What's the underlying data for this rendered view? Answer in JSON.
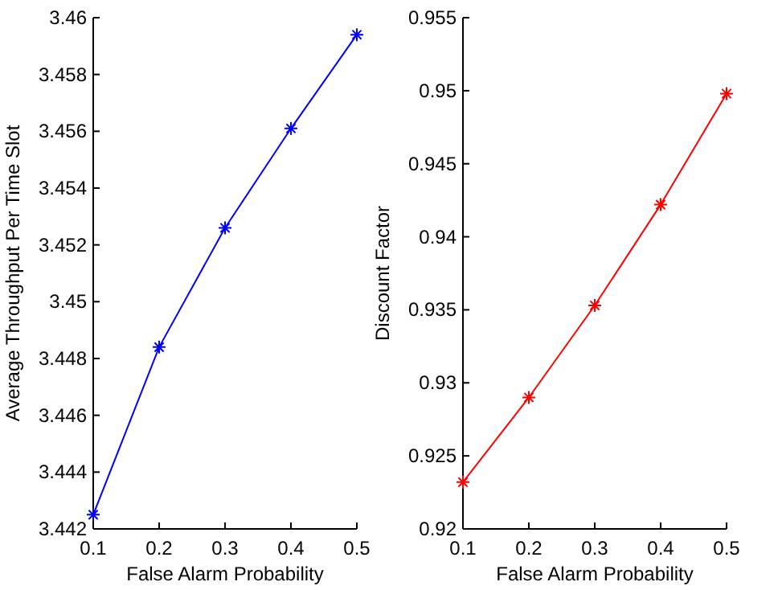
{
  "chart_data": [
    {
      "type": "line",
      "xlabel": "False Alarm Probability",
      "ylabel": "Average Throughput Per Time Slot",
      "x": [
        0.1,
        0.2,
        0.3,
        0.4,
        0.5
      ],
      "series": [
        {
          "color": "#0000ff",
          "values": [
            3.4425,
            3.4484,
            3.4526,
            3.4561,
            3.4594
          ]
        }
      ],
      "xlim": [
        0.1,
        0.5
      ],
      "xticks": [
        0.1,
        0.2,
        0.3,
        0.4,
        0.5
      ],
      "ylim": [
        3.442,
        3.46
      ],
      "yticks": [
        3.442,
        3.444,
        3.446,
        3.448,
        3.45,
        3.452,
        3.454,
        3.456,
        3.458,
        3.46
      ],
      "marker": "cross",
      "line_style": "solid"
    },
    {
      "type": "line",
      "xlabel": "False Alarm Probability",
      "ylabel": "Discount Factor",
      "x": [
        0.1,
        0.2,
        0.3,
        0.4,
        0.5
      ],
      "series": [
        {
          "color": "#ff0000",
          "values": [
            0.9232,
            0.929,
            0.9353,
            0.9422,
            0.9498
          ]
        }
      ],
      "xlim": [
        0.1,
        0.5
      ],
      "xticks": [
        0.1,
        0.2,
        0.3,
        0.4,
        0.5
      ],
      "ylim": [
        0.92,
        0.955
      ],
      "yticks": [
        0.92,
        0.925,
        0.93,
        0.935,
        0.94,
        0.945,
        0.95,
        0.955
      ],
      "marker": "cross",
      "line_style": "solid"
    }
  ]
}
